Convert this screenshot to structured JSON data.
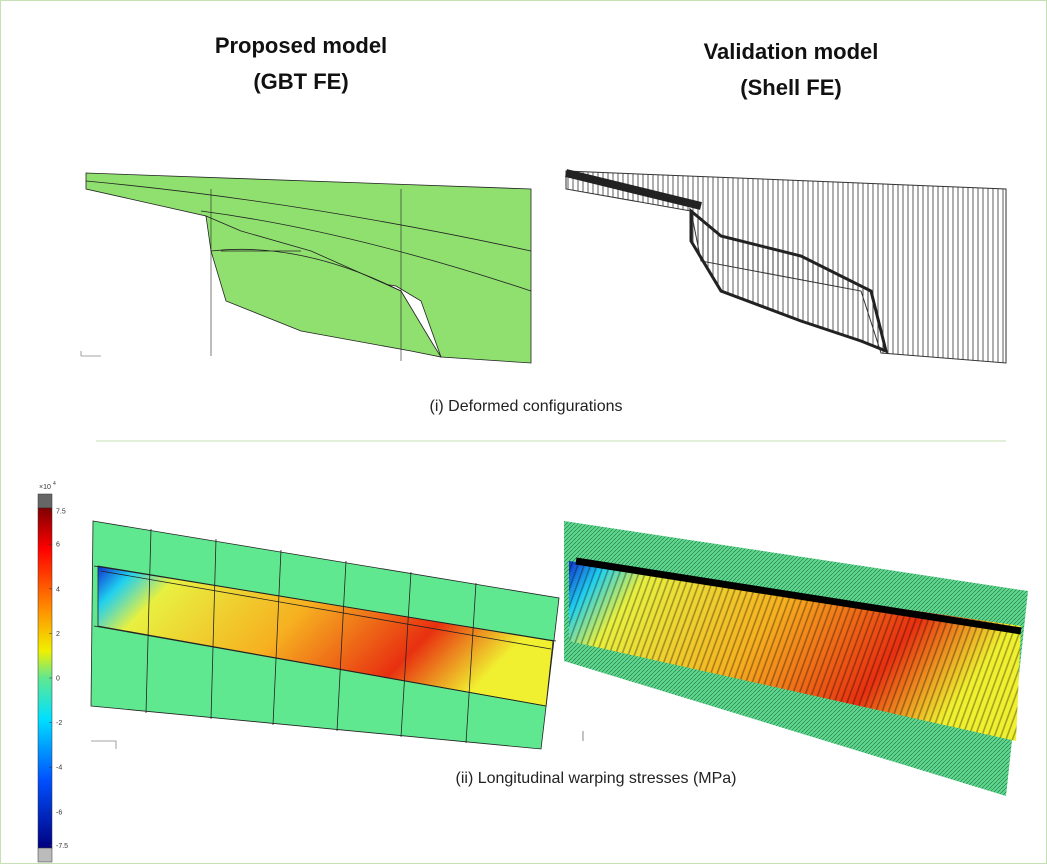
{
  "header": {
    "left_title": "Proposed model",
    "left_subtitle": "(GBT FE)",
    "right_title": "Validation model",
    "right_subtitle": "(Shell FE)"
  },
  "panels": [
    {
      "caption": "(i) Deformed configurations"
    },
    {
      "caption": "(ii) Longitudinal warping stresses (MPa)"
    }
  ],
  "colorbar": {
    "multiplier_base": "×10",
    "multiplier_exponent": "4",
    "ticks": [
      7.5,
      6,
      4,
      2,
      0,
      -2,
      -4,
      -6,
      -7.5
    ]
  }
}
